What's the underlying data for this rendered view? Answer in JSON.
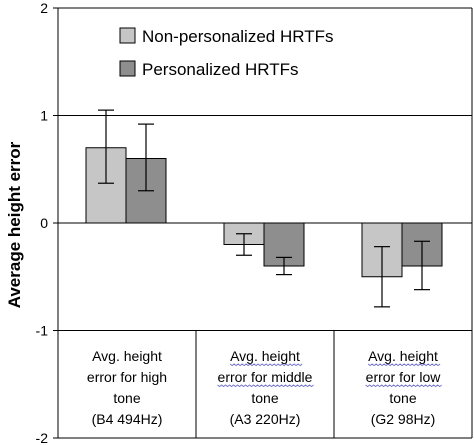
{
  "chart_data": {
    "type": "bar",
    "ylabel": "Average height error",
    "ylim": [
      -2,
      2
    ],
    "yticks": [
      2,
      1,
      0,
      -1,
      -2
    ],
    "gridlines": true,
    "legend": "top",
    "categories": [
      [
        "Avg. height",
        "error for high",
        "tone",
        "(B4 494Hz)"
      ],
      [
        "Avg. height",
        "error for middle",
        "tone",
        "(A3 220Hz)"
      ],
      [
        "Avg. height",
        "error for low",
        "tone",
        "(G2 98Hz)"
      ]
    ],
    "series": [
      {
        "name": "Non-personalized HRTFs",
        "color": "#c6c6c6",
        "values": [
          0.7,
          -0.2,
          -0.5
        ],
        "error_low": [
          0.37,
          -0.3,
          -0.78
        ],
        "error_high": [
          1.05,
          -0.1,
          -0.22
        ]
      },
      {
        "name": "Personalized HRTFs",
        "color": "#8e8e8e",
        "values": [
          0.6,
          -0.4,
          -0.4
        ],
        "error_low": [
          0.3,
          -0.48,
          -0.62
        ],
        "error_high": [
          0.92,
          -0.32,
          -0.17
        ]
      }
    ]
  }
}
